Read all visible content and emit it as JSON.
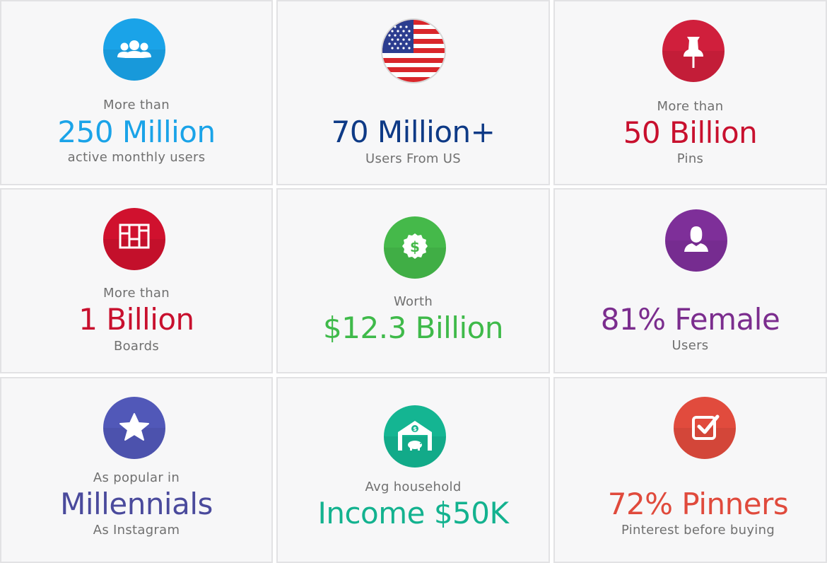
{
  "stats": [
    {
      "pre": "More than",
      "big": "250 Million",
      "sub": "active monthly users",
      "color": "#1aa3e8",
      "icon": "users-icon"
    },
    {
      "pre": "",
      "big": "70 Million+",
      "sub": "Users From US",
      "color": "#0e3a86",
      "icon": "us-flag-icon"
    },
    {
      "pre": "More than",
      "big": "50 Billion",
      "sub": "Pins",
      "color": "#c8102e",
      "icon": "pushpin-icon"
    },
    {
      "pre": "More than",
      "big": "1 Billion",
      "sub": "Boards",
      "color": "#c8102e",
      "icon": "boards-icon"
    },
    {
      "pre": "Worth",
      "big": "$12.3 Billion",
      "sub": "",
      "color": "#3fba4a",
      "icon": "dollar-badge-icon"
    },
    {
      "pre": "",
      "big": "81% Female",
      "sub": "Users",
      "color": "#7b2d8e",
      "icon": "female-user-icon"
    },
    {
      "pre": "As popular in",
      "big": "Millennials",
      "sub": "As Instagram",
      "color": "#4a4a9c",
      "icon": "star-icon"
    },
    {
      "pre": "Avg household",
      "big": "Income $50K",
      "sub": "",
      "color": "#13b28f",
      "icon": "bank-piggy-icon"
    },
    {
      "pre": "",
      "big": "72% Pinners",
      "sub": "Pinterest before buying",
      "color": "#e04a3c",
      "icon": "checkbox-icon"
    }
  ]
}
